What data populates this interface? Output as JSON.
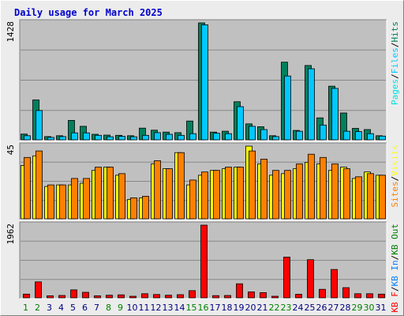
{
  "title": "Daily usage for March 2025",
  "colors": {
    "background": "#ececec",
    "panel": "#c0c0c0",
    "grid": "#888888",
    "title": "#0000cc",
    "hits": "#00805c",
    "files": "#00c8ff",
    "pages": "#00e0e0",
    "visits": "#ffff00",
    "sites": "#ff8000",
    "kb_out": "#008000",
    "kb_in": "#0080ff",
    "kb_f": "#ff0000",
    "weekend_day": "#008000",
    "weekday_day": "#000080"
  },
  "chart_data": [
    {
      "type": "bar",
      "name": "hits-files-pages",
      "ymax_label": "1428",
      "legend": [
        "Pages",
        "Files",
        "Hits"
      ],
      "categories": [
        "1",
        "2",
        "3",
        "4",
        "5",
        "6",
        "7",
        "8",
        "9",
        "10",
        "11",
        "12",
        "13",
        "14",
        "15",
        "16",
        "17",
        "18",
        "19",
        "20",
        "21",
        "22",
        "23",
        "24",
        "25",
        "26",
        "27",
        "28",
        "29",
        "30",
        "31"
      ],
      "weekend_days": [
        "1",
        "2",
        "8",
        "9",
        "15",
        "16",
        "22",
        "23",
        "29",
        "30"
      ],
      "series": [
        {
          "name": "Hits",
          "values": [
            70,
            487,
            40,
            50,
            237,
            165,
            68,
            58,
            55,
            50,
            143,
            118,
            95,
            88,
            230,
            1428,
            95,
            105,
            465,
            195,
            160,
            50,
            948,
            115,
            908,
            268,
            655,
            328,
            140,
            125,
            50
          ]
        },
        {
          "name": "Files",
          "values": [
            50,
            358,
            30,
            40,
            85,
            85,
            55,
            38,
            42,
            38,
            55,
            88,
            68,
            55,
            75,
            1405,
            80,
            75,
            405,
            165,
            125,
            40,
            780,
            105,
            868,
            180,
            628,
            105,
            100,
            75,
            45
          ]
        },
        {
          "name": "Pages",
          "values": [
            0,
            0,
            0,
            0,
            0,
            0,
            0,
            0,
            0,
            0,
            0,
            0,
            0,
            0,
            0,
            0,
            0,
            0,
            0,
            0,
            0,
            0,
            0,
            0,
            0,
            0,
            0,
            0,
            0,
            0,
            0
          ]
        }
      ],
      "ylim": [
        0,
        1428
      ]
    },
    {
      "type": "bar",
      "name": "visits-sites",
      "ymax_label": "45",
      "legend": [
        "Sites",
        "Visits"
      ],
      "categories": [
        "1",
        "2",
        "3",
        "4",
        "5",
        "6",
        "7",
        "8",
        "9",
        "10",
        "11",
        "12",
        "13",
        "14",
        "15",
        "16",
        "17",
        "18",
        "19",
        "20",
        "21",
        "22",
        "23",
        "24",
        "25",
        "26",
        "27",
        "28",
        "29",
        "30",
        "31"
      ],
      "series": [
        {
          "name": "Visits",
          "values": [
            33,
            39,
            20,
            21,
            21,
            22,
            30,
            32,
            27,
            12,
            13,
            34,
            31,
            41,
            21,
            27,
            30,
            31,
            32,
            45,
            34,
            27,
            28,
            31,
            35,
            34,
            30,
            32,
            25,
            29,
            27
          ]
        },
        {
          "name": "Sites",
          "values": [
            38,
            42,
            21,
            21,
            25,
            25,
            32,
            32,
            28,
            13,
            14,
            36,
            31,
            41,
            24,
            29,
            30,
            32,
            32,
            42,
            37,
            30,
            30,
            34,
            40,
            38,
            34,
            31,
            26,
            28,
            27
          ]
        }
      ],
      "ylim": [
        0,
        45
      ]
    },
    {
      "type": "bar",
      "name": "kbytes",
      "ymax_label": "1962",
      "legend": [
        "KB F",
        "KB In",
        "KB Out"
      ],
      "categories": [
        "1",
        "2",
        "3",
        "4",
        "5",
        "6",
        "7",
        "8",
        "9",
        "10",
        "11",
        "12",
        "13",
        "14",
        "15",
        "16",
        "17",
        "18",
        "19",
        "20",
        "21",
        "22",
        "23",
        "24",
        "25",
        "26",
        "27",
        "28",
        "29",
        "30",
        "31"
      ],
      "series": [
        {
          "name": "KB F",
          "values": [
            100,
            430,
            55,
            65,
            215,
            150,
            55,
            70,
            80,
            15,
            110,
            90,
            70,
            85,
            195,
            1962,
            60,
            65,
            380,
            160,
            140,
            40,
            1100,
            95,
            1030,
            230,
            765,
            275,
            110,
            110,
            100
          ]
        },
        {
          "name": "KB In",
          "values": [
            0,
            0,
            0,
            0,
            0,
            0,
            0,
            0,
            0,
            0,
            0,
            0,
            0,
            0,
            0,
            0,
            0,
            0,
            0,
            0,
            0,
            0,
            0,
            0,
            0,
            0,
            0,
            0,
            0,
            0,
            0
          ]
        },
        {
          "name": "KB Out",
          "values": [
            0,
            0,
            0,
            0,
            0,
            0,
            0,
            0,
            0,
            0,
            0,
            0,
            0,
            0,
            0,
            0,
            0,
            0,
            0,
            0,
            0,
            0,
            0,
            0,
            0,
            0,
            0,
            0,
            0,
            0,
            0
          ]
        }
      ],
      "ylim": [
        0,
        1962
      ]
    }
  ]
}
